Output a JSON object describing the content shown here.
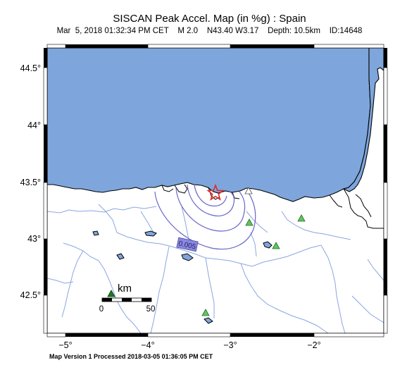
{
  "map": {
    "title": "SISCAN Peak Accel. Map (in %g) : Spain",
    "subtitle": "Mar  5, 2018 01:32:34 PM CET    M 2.0    N43.40 W3.17    Depth: 10.5km    ID:14648",
    "footer": "Map Version 1 Processed 2018-03-05 01:36:05 PM CET",
    "y_ticks": [
      "44.5°",
      "44°",
      "43.5°",
      "43°",
      "42.5°"
    ],
    "x_ticks": [
      "−5°",
      "−4°",
      "−3°",
      "−2°"
    ],
    "contour_label": "0.005",
    "scale_bar": {
      "unit": "km",
      "start": "0",
      "end": "50"
    },
    "epicenter": {
      "lat": 43.4,
      "lon": -3.17,
      "symbol": "star-icon"
    },
    "colors": {
      "sea": "#7ea6dc",
      "land": "#ffffff",
      "coast": "#000000",
      "rivers": "#8aa6e0",
      "contours": "#6a66c8",
      "contour_label_bg": "#8a88dc",
      "epicenter": "#e0282a",
      "station_green": "#5ec65e",
      "station_dark": "#1f7a1f"
    }
  }
}
